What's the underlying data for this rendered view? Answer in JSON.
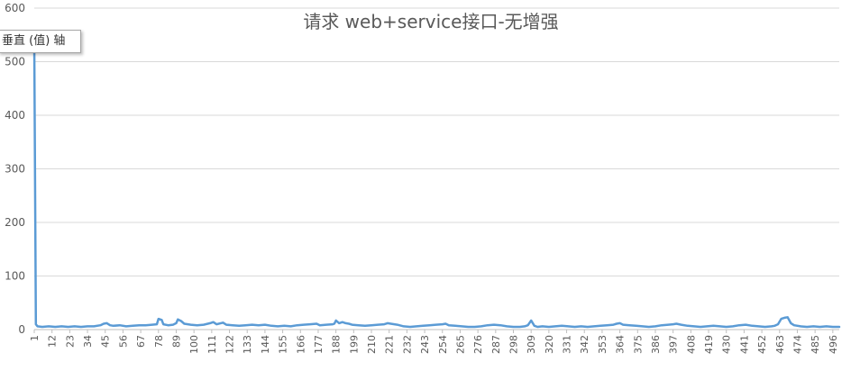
{
  "chart_data": {
    "type": "line",
    "title": "请求 web+service接口-无增强",
    "xlabel": "",
    "ylabel": "",
    "ylim": [
      0,
      600
    ],
    "yticks": [
      0,
      100,
      200,
      300,
      400,
      500,
      600
    ],
    "xlim": [
      1,
      500
    ],
    "x_tick_labels": [
      "1",
      "12",
      "23",
      "34",
      "45",
      "56",
      "67",
      "78",
      "89",
      "100",
      "111",
      "122",
      "133",
      "144",
      "155",
      "166",
      "177",
      "188",
      "199",
      "210",
      "221",
      "232",
      "243",
      "254",
      "265",
      "276",
      "287",
      "298",
      "309",
      "320",
      "331",
      "342",
      "353",
      "364",
      "375",
      "386",
      "397",
      "408",
      "419",
      "430",
      "441",
      "452",
      "463",
      "474",
      "485",
      "496"
    ],
    "grid": "horizontal",
    "legend": "none",
    "color": "#5b9bd5",
    "series": [
      {
        "points": [
          [
            1,
            540
          ],
          [
            2,
            10
          ],
          [
            3,
            6
          ],
          [
            6,
            5
          ],
          [
            10,
            6
          ],
          [
            14,
            5
          ],
          [
            18,
            6
          ],
          [
            22,
            5
          ],
          [
            26,
            6
          ],
          [
            30,
            5
          ],
          [
            34,
            6
          ],
          [
            38,
            6
          ],
          [
            42,
            8
          ],
          [
            44,
            11
          ],
          [
            46,
            12
          ],
          [
            48,
            8
          ],
          [
            50,
            7
          ],
          [
            54,
            8
          ],
          [
            58,
            6
          ],
          [
            62,
            7
          ],
          [
            66,
            8
          ],
          [
            70,
            8
          ],
          [
            74,
            9
          ],
          [
            77,
            10
          ],
          [
            78,
            20
          ],
          [
            80,
            18
          ],
          [
            81,
            10
          ],
          [
            84,
            8
          ],
          [
            87,
            9
          ],
          [
            89,
            12
          ],
          [
            90,
            19
          ],
          [
            92,
            16
          ],
          [
            94,
            11
          ],
          [
            98,
            9
          ],
          [
            102,
            8
          ],
          [
            106,
            9
          ],
          [
            110,
            12
          ],
          [
            112,
            14
          ],
          [
            114,
            10
          ],
          [
            118,
            13
          ],
          [
            120,
            9
          ],
          [
            124,
            8
          ],
          [
            128,
            7
          ],
          [
            132,
            8
          ],
          [
            136,
            9
          ],
          [
            140,
            8
          ],
          [
            144,
            9
          ],
          [
            148,
            7
          ],
          [
            152,
            6
          ],
          [
            156,
            7
          ],
          [
            160,
            6
          ],
          [
            164,
            8
          ],
          [
            168,
            9
          ],
          [
            172,
            10
          ],
          [
            176,
            11
          ],
          [
            178,
            8
          ],
          [
            182,
            9
          ],
          [
            186,
            10
          ],
          [
            187,
            11
          ],
          [
            188,
            17
          ],
          [
            190,
            12
          ],
          [
            192,
            14
          ],
          [
            194,
            12
          ],
          [
            196,
            11
          ],
          [
            198,
            9
          ],
          [
            202,
            8
          ],
          [
            206,
            7
          ],
          [
            210,
            8
          ],
          [
            214,
            9
          ],
          [
            218,
            10
          ],
          [
            220,
            12
          ],
          [
            222,
            11
          ],
          [
            226,
            9
          ],
          [
            230,
            6
          ],
          [
            234,
            5
          ],
          [
            238,
            6
          ],
          [
            242,
            7
          ],
          [
            246,
            8
          ],
          [
            250,
            9
          ],
          [
            254,
            10
          ],
          [
            256,
            11
          ],
          [
            258,
            8
          ],
          [
            262,
            7
          ],
          [
            266,
            6
          ],
          [
            270,
            5
          ],
          [
            274,
            5
          ],
          [
            278,
            6
          ],
          [
            282,
            8
          ],
          [
            286,
            9
          ],
          [
            290,
            8
          ],
          [
            294,
            6
          ],
          [
            298,
            5
          ],
          [
            302,
            5
          ],
          [
            305,
            6
          ],
          [
            307,
            8
          ],
          [
            309,
            17
          ],
          [
            311,
            7
          ],
          [
            313,
            5
          ],
          [
            316,
            6
          ],
          [
            320,
            5
          ],
          [
            324,
            6
          ],
          [
            328,
            7
          ],
          [
            332,
            6
          ],
          [
            336,
            5
          ],
          [
            340,
            6
          ],
          [
            344,
            5
          ],
          [
            348,
            6
          ],
          [
            352,
            7
          ],
          [
            356,
            8
          ],
          [
            360,
            9
          ],
          [
            362,
            11
          ],
          [
            364,
            12
          ],
          [
            366,
            9
          ],
          [
            370,
            8
          ],
          [
            374,
            7
          ],
          [
            378,
            6
          ],
          [
            382,
            5
          ],
          [
            386,
            6
          ],
          [
            390,
            8
          ],
          [
            394,
            9
          ],
          [
            397,
            10
          ],
          [
            399,
            11
          ],
          [
            402,
            9
          ],
          [
            406,
            7
          ],
          [
            410,
            6
          ],
          [
            414,
            5
          ],
          [
            418,
            6
          ],
          [
            422,
            7
          ],
          [
            426,
            6
          ],
          [
            430,
            5
          ],
          [
            434,
            6
          ],
          [
            438,
            8
          ],
          [
            442,
            9
          ],
          [
            446,
            7
          ],
          [
            450,
            6
          ],
          [
            454,
            5
          ],
          [
            458,
            6
          ],
          [
            460,
            7
          ],
          [
            462,
            10
          ],
          [
            464,
            20
          ],
          [
            466,
            22
          ],
          [
            468,
            23
          ],
          [
            470,
            12
          ],
          [
            472,
            8
          ],
          [
            476,
            6
          ],
          [
            480,
            5
          ],
          [
            484,
            6
          ],
          [
            488,
            5
          ],
          [
            492,
            6
          ],
          [
            496,
            5
          ],
          [
            500,
            5
          ]
        ]
      }
    ]
  },
  "tooltip": {
    "text": "垂直 (值) 轴"
  }
}
